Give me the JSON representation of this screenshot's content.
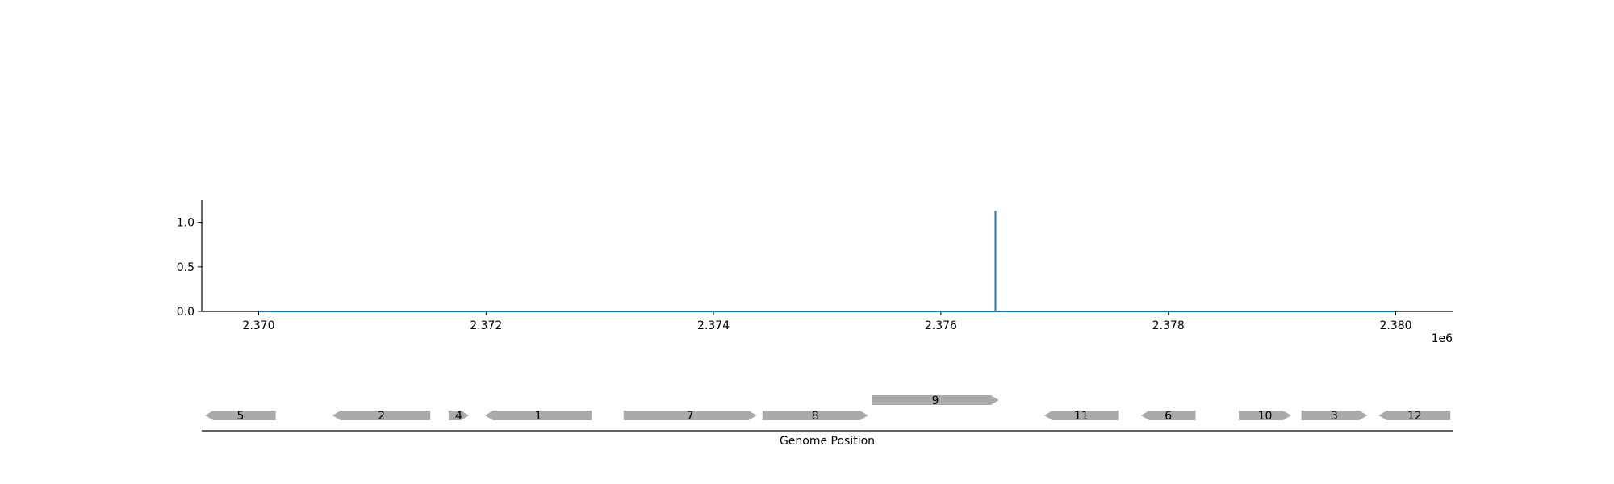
{
  "chart_data": {
    "type": "line",
    "title": "",
    "xlabel": "Genome Position",
    "ylabel": "",
    "x_offset_label": "1e6",
    "xlim": [
      2369500,
      2380500
    ],
    "ylim": [
      0,
      1.25
    ],
    "x_ticks": [
      2370000,
      2372000,
      2374000,
      2376000,
      2378000,
      2380000
    ],
    "x_tick_labels": [
      "2.370",
      "2.372",
      "2.374",
      "2.376",
      "2.378",
      "2.380"
    ],
    "y_ticks": [
      0.0,
      0.5,
      1.0
    ],
    "y_tick_labels": [
      "0.0",
      "0.5",
      "1.0"
    ],
    "grid": false,
    "line_color": "#1f77b4",
    "series": [
      {
        "x": [
          2370000,
          2376480,
          2376480,
          2376480,
          2380000
        ],
        "y": [
          0,
          0,
          1.13,
          0,
          0
        ]
      }
    ],
    "genes": {
      "color": "#aaaaaa",
      "items": [
        {
          "label": "5",
          "start": 2369530,
          "end": 2370150,
          "strand": "-",
          "row": 0
        },
        {
          "label": "2",
          "start": 2370650,
          "end": 2371510,
          "strand": "-",
          "row": 0
        },
        {
          "label": "4",
          "start": 2371670,
          "end": 2371850,
          "strand": "+",
          "row": 0
        },
        {
          "label": "1",
          "start": 2371990,
          "end": 2372930,
          "strand": "-",
          "row": 0
        },
        {
          "label": "7",
          "start": 2373210,
          "end": 2374380,
          "strand": "+",
          "row": 0
        },
        {
          "label": "8",
          "start": 2374430,
          "end": 2375360,
          "strand": "+",
          "row": 0
        },
        {
          "label": "9",
          "start": 2375390,
          "end": 2376510,
          "strand": "+",
          "row": 1
        },
        {
          "label": "11",
          "start": 2376910,
          "end": 2377560,
          "strand": "-",
          "row": 0
        },
        {
          "label": "6",
          "start": 2377760,
          "end": 2378240,
          "strand": "-",
          "row": 0
        },
        {
          "label": "10",
          "start": 2378620,
          "end": 2379080,
          "strand": "+",
          "row": 0
        },
        {
          "label": "3",
          "start": 2379170,
          "end": 2379750,
          "strand": "+",
          "row": 0
        },
        {
          "label": "12",
          "start": 2379850,
          "end": 2380480,
          "strand": "-",
          "row": 0
        }
      ]
    }
  }
}
